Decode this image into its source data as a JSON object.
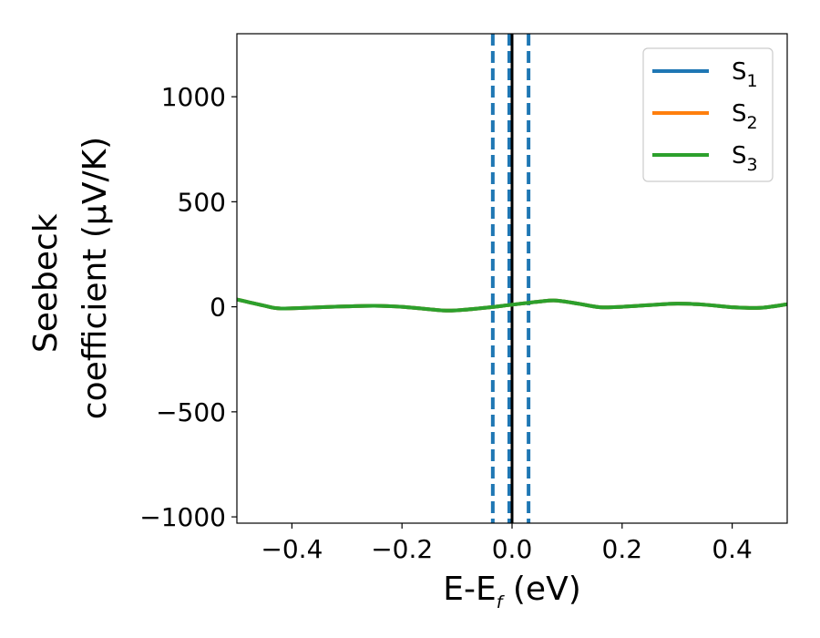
{
  "chart_data": {
    "type": "line",
    "title": "",
    "xlabel": {
      "main": "E-E",
      "sub": "f",
      "unit": " (eV)"
    },
    "ylabel": {
      "line1": "Seebeck",
      "line2": "coefficient  (μV/K)"
    },
    "xlim": [
      -0.5,
      0.5
    ],
    "ylim": [
      -1030,
      1300
    ],
    "xticks": [
      -0.4,
      -0.2,
      0.0,
      0.2,
      0.4
    ],
    "xtick_labels": [
      "−0.4",
      "−0.2",
      "0.0",
      "0.2",
      "0.4"
    ],
    "yticks": [
      -1000,
      -500,
      0,
      500,
      1000
    ],
    "ytick_labels": [
      "−1000",
      "−500",
      "0",
      "500",
      "1000"
    ],
    "grid": false,
    "legend_position": "top-right",
    "series": [
      {
        "name": "S",
        "sub": "1",
        "color": "#1f77b4",
        "x": [
          -0.5,
          -0.45,
          -0.42,
          -0.35,
          -0.3,
          -0.25,
          -0.2,
          -0.15,
          -0.11,
          -0.05,
          0.0,
          0.05,
          0.08,
          0.12,
          0.16,
          0.2,
          0.25,
          0.3,
          0.35,
          0.4,
          0.45,
          0.5
        ],
        "y": [
          35,
          5,
          -8,
          -2,
          2,
          5,
          0,
          -12,
          -18,
          -5,
          10,
          25,
          30,
          15,
          -2,
          0,
          8,
          15,
          10,
          -2,
          -5,
          12
        ]
      },
      {
        "name": "S",
        "sub": "2",
        "color": "#ff7f0e",
        "x": [
          -0.5,
          -0.45,
          -0.42,
          -0.35,
          -0.3,
          -0.25,
          -0.2,
          -0.15,
          -0.11,
          -0.05,
          0.0,
          0.05,
          0.08,
          0.12,
          0.16,
          0.2,
          0.25,
          0.3,
          0.35,
          0.4,
          0.45,
          0.5
        ],
        "y": [
          35,
          5,
          -8,
          -2,
          2,
          5,
          0,
          -12,
          -18,
          -5,
          10,
          25,
          30,
          15,
          -2,
          0,
          8,
          15,
          10,
          -2,
          -5,
          12
        ]
      },
      {
        "name": "S",
        "sub": "3",
        "color": "#2ca02c",
        "x": [
          -0.5,
          -0.45,
          -0.42,
          -0.35,
          -0.3,
          -0.25,
          -0.2,
          -0.15,
          -0.11,
          -0.05,
          0.0,
          0.05,
          0.08,
          0.12,
          0.16,
          0.2,
          0.25,
          0.3,
          0.35,
          0.4,
          0.45,
          0.5
        ],
        "y": [
          35,
          5,
          -8,
          -2,
          2,
          5,
          0,
          -12,
          -18,
          -5,
          10,
          25,
          30,
          15,
          -2,
          0,
          8,
          15,
          10,
          -2,
          -5,
          12
        ]
      }
    ],
    "vlines": [
      {
        "x": -0.035,
        "color": "#1f77b4",
        "style": "dashed"
      },
      {
        "x": -0.005,
        "color": "#1f77b4",
        "style": "dashed"
      },
      {
        "x": 0.0,
        "color": "#000000",
        "style": "solid"
      },
      {
        "x": 0.03,
        "color": "#1f77b4",
        "style": "dashed"
      }
    ]
  }
}
